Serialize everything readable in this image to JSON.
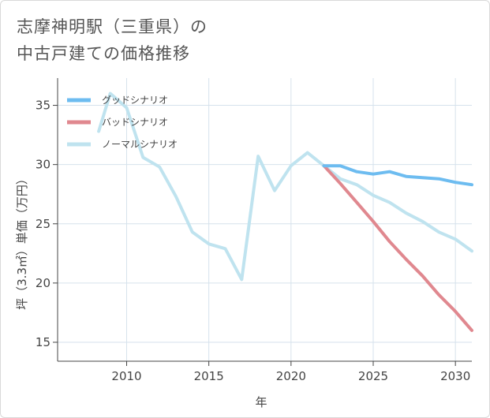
{
  "title_lines": [
    "志摩神明駅（三重県）の",
    "中古戸建ての価格推移"
  ],
  "chart_data": {
    "type": "line",
    "title": "志摩神明駅（三重県）の中古戸建ての価格推移",
    "xlabel": "年",
    "ylabel": "坪（3.3㎡）単価（万円）",
    "xlim": [
      2005.8,
      2031
    ],
    "ylim": [
      13.4,
      37.3
    ],
    "xticks": [
      2010,
      2015,
      2020,
      2025,
      2030
    ],
    "yticks": [
      15,
      20,
      25,
      30,
      35
    ],
    "grid": true,
    "legend_position": "top-left",
    "series": [
      {
        "name": "グッドシナリオ",
        "color": "#6dbcf0",
        "x": [
          2022,
          2023,
          2024,
          2025,
          2026,
          2027,
          2028,
          2029,
          2030,
          2031
        ],
        "y": [
          29.9,
          29.9,
          29.4,
          29.2,
          29.4,
          29.0,
          28.9,
          28.8,
          28.5,
          28.3
        ]
      },
      {
        "name": "バッドシナリオ",
        "color": "#e0888f",
        "x": [
          2022,
          2023,
          2024,
          2025,
          2026,
          2027,
          2028,
          2029,
          2030,
          2031
        ],
        "y": [
          29.9,
          28.4,
          26.8,
          25.2,
          23.5,
          22.0,
          20.6,
          19.0,
          17.6,
          16.0
        ]
      },
      {
        "name": "ノーマルシナリオ",
        "color": "#bfe3ef",
        "x": [
          2008.3,
          2009,
          2010,
          2011,
          2012,
          2013,
          2014,
          2015,
          2016,
          2017,
          2018,
          2019,
          2020,
          2021,
          2022,
          2023,
          2024,
          2025,
          2026,
          2027,
          2028,
          2029,
          2030,
          2031
        ],
        "y": [
          32.8,
          36.0,
          34.8,
          30.6,
          29.8,
          27.3,
          24.3,
          23.3,
          22.9,
          20.3,
          30.7,
          27.8,
          29.9,
          31.0,
          29.9,
          28.8,
          28.3,
          27.4,
          26.8,
          25.9,
          25.2,
          24.3,
          23.7,
          22.7
        ]
      }
    ]
  }
}
